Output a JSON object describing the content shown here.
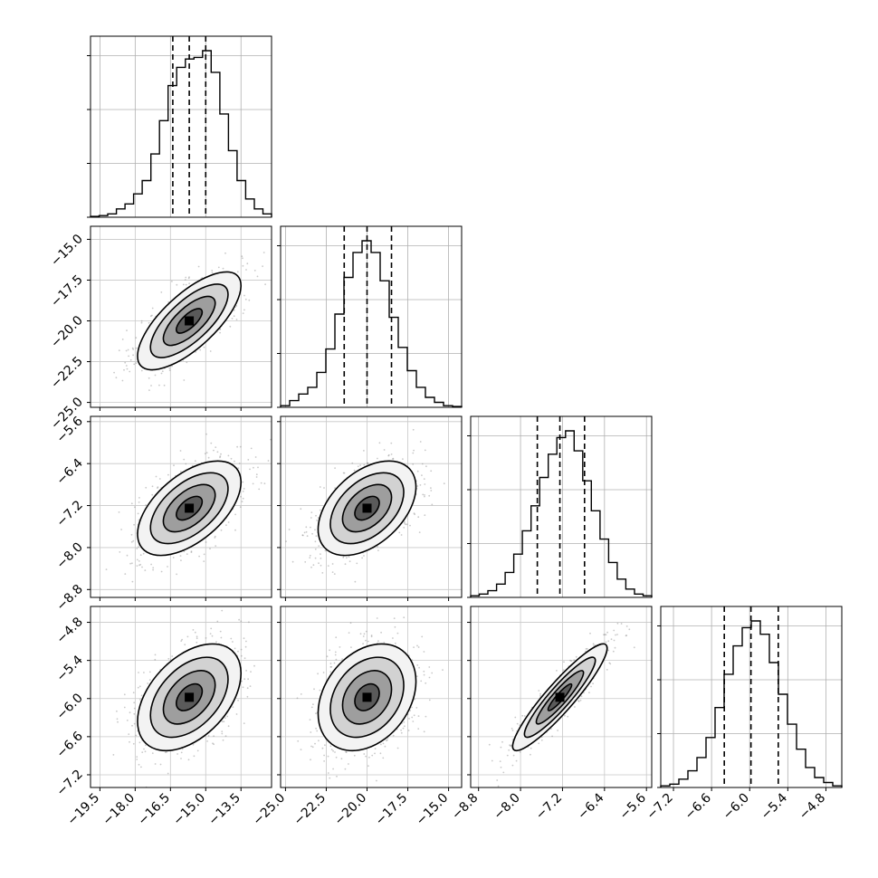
{
  "chart_data": {
    "type": "corner",
    "n_params": 4,
    "quantile_lines": "dashed vertical lines at 16th, 50th and 84th percentiles",
    "grid": true,
    "contours": "filled density with black contour lines over grey scatter points",
    "params": [
      {
        "range": [
          -19.9,
          -12.2
        ],
        "quantiles": [
          -16.4,
          -15.7,
          -15.0
        ],
        "ticks": [
          -19.5,
          -18.0,
          -16.5,
          -15.0,
          -13.5
        ],
        "tick_labels": [
          "−19.5",
          "−18.0",
          "−16.5",
          "−15.0",
          "−13.5"
        ],
        "hist": [
          0.005,
          0.01,
          0.02,
          0.05,
          0.08,
          0.14,
          0.22,
          0.38,
          0.58,
          0.79,
          0.9,
          0.95,
          0.96,
          1.0,
          0.87,
          0.62,
          0.4,
          0.22,
          0.11,
          0.05,
          0.02
        ]
      },
      {
        "range": [
          -25.3,
          -14.2
        ],
        "quantiles": [
          -21.4,
          -20.0,
          -18.5
        ],
        "ticks": [
          -25.0,
          -22.5,
          -20.0,
          -17.5,
          -15.0
        ],
        "tick_labels": [
          "−25.0",
          "−22.5",
          "−20.0",
          "−17.5",
          "−15.0"
        ],
        "hist": [
          0.01,
          0.04,
          0.08,
          0.12,
          0.21,
          0.35,
          0.56,
          0.78,
          0.93,
          1.0,
          0.93,
          0.76,
          0.54,
          0.36,
          0.22,
          0.12,
          0.06,
          0.03,
          0.01,
          0.005
        ]
      },
      {
        "range": [
          -8.95,
          -5.5
        ],
        "quantiles": [
          -7.68,
          -7.25,
          -6.78
        ],
        "ticks": [
          -8.8,
          -8.0,
          -7.2,
          -6.4,
          -5.6
        ],
        "tick_labels": [
          "−8.8",
          "−8.0",
          "−7.2",
          "−6.4",
          "−5.6"
        ],
        "hist": [
          0.01,
          0.02,
          0.04,
          0.08,
          0.15,
          0.26,
          0.4,
          0.55,
          0.72,
          0.86,
          0.96,
          1.0,
          0.88,
          0.7,
          0.52,
          0.35,
          0.21,
          0.11,
          0.05,
          0.02,
          0.01
        ]
      },
      {
        "range": [
          -7.4,
          -4.55
        ],
        "quantiles": [
          -6.4,
          -5.98,
          -5.55
        ],
        "ticks": [
          -7.2,
          -6.6,
          -6.0,
          -5.4,
          -4.8
        ],
        "tick_labels": [
          "−7.2",
          "−6.6",
          "−6.0",
          "−5.4",
          "−4.8"
        ],
        "hist": [
          0.01,
          0.02,
          0.05,
          0.1,
          0.18,
          0.3,
          0.48,
          0.68,
          0.85,
          0.96,
          1.0,
          0.92,
          0.75,
          0.56,
          0.38,
          0.23,
          0.12,
          0.06,
          0.03,
          0.01
        ]
      }
    ],
    "pairs": [
      {
        "row": 1,
        "col": 0,
        "center": [
          -15.7,
          -20.0
        ],
        "sd": [
          1.1,
          1.5
        ],
        "corr": 0.72
      },
      {
        "row": 2,
        "col": 0,
        "center": [
          -15.7,
          -7.25
        ],
        "sd": [
          1.1,
          0.45
        ],
        "corr": 0.55
      },
      {
        "row": 2,
        "col": 1,
        "center": [
          -20.0,
          -7.25
        ],
        "sd": [
          1.5,
          0.45
        ],
        "corr": 0.45
      },
      {
        "row": 3,
        "col": 0,
        "center": [
          -15.7,
          -5.98
        ],
        "sd": [
          1.1,
          0.42
        ],
        "corr": 0.45
      },
      {
        "row": 3,
        "col": 1,
        "center": [
          -20.0,
          -5.98
        ],
        "sd": [
          1.5,
          0.42
        ],
        "corr": 0.3
      },
      {
        "row": 3,
        "col": 2,
        "center": [
          -7.25,
          -5.98
        ],
        "sd": [
          0.45,
          0.42
        ],
        "corr": 0.92
      }
    ]
  }
}
